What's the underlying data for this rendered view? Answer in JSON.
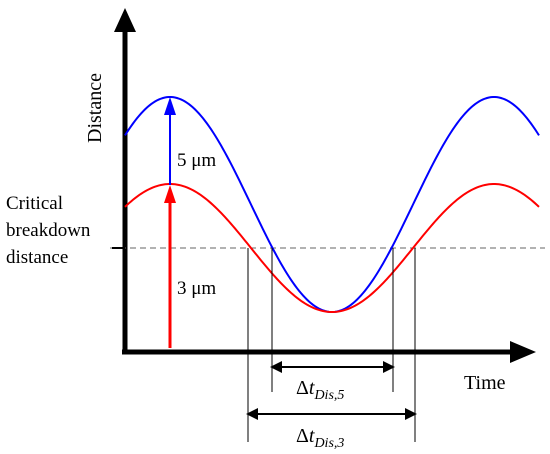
{
  "diagram": {
    "y_axis_label": "Distance",
    "x_axis_label": "Time",
    "threshold_label_lines": [
      "Critical",
      "breakdown",
      "distance"
    ],
    "arrow_labels": {
      "blue": "5 μm",
      "red": "3 μm"
    },
    "interval_labels": {
      "inner": {
        "delta": "Δ",
        "t": "t",
        "sub": "Dis,5"
      },
      "outer": {
        "delta": "Δ",
        "t": "t",
        "sub": "Dis,3"
      }
    },
    "colors": {
      "blue_curve": "#0000ff",
      "red_curve": "#ff0000",
      "axes": "#000000",
      "threshold_line": "#666666"
    }
  }
}
